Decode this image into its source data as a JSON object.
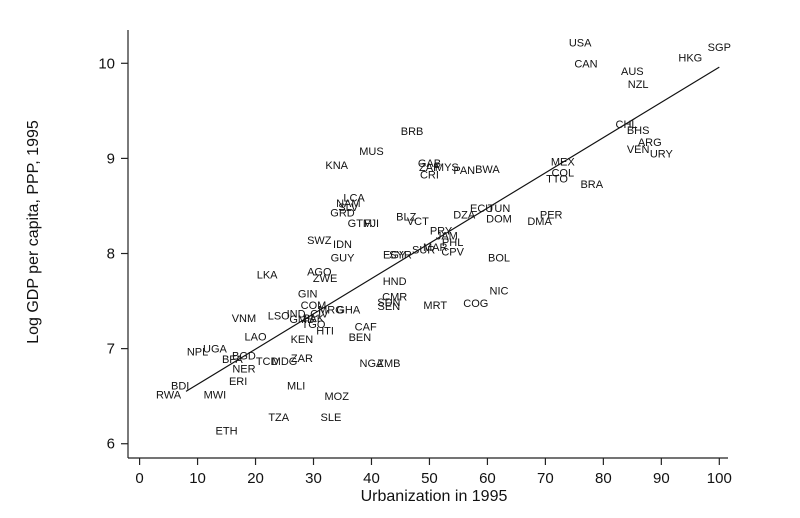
{
  "chart_data": {
    "type": "scatter",
    "xlabel": "Urbanization in 1995",
    "ylabel": "Log GDP per capita, PPP, 1995",
    "xlim": [
      -2,
      101.5
    ],
    "ylim": [
      5.85,
      10.35
    ],
    "xticks": [
      0,
      10,
      20,
      30,
      40,
      50,
      60,
      70,
      80,
      90,
      100
    ],
    "yticks": [
      6,
      7,
      8,
      9,
      10
    ],
    "grid": false,
    "fit_line": {
      "x": [
        8,
        100
      ],
      "y": [
        6.55,
        9.96
      ]
    },
    "points": [
      {
        "label": "USA",
        "x": 76,
        "y": 10.22
      },
      {
        "label": "SGP",
        "x": 100,
        "y": 10.17
      },
      {
        "label": "HKG",
        "x": 95,
        "y": 10.06
      },
      {
        "label": "CAN",
        "x": 77,
        "y": 10.0
      },
      {
        "label": "AUS",
        "x": 85,
        "y": 9.92
      },
      {
        "label": "NZL",
        "x": 86,
        "y": 9.78
      },
      {
        "label": "CHL",
        "x": 84,
        "y": 9.36
      },
      {
        "label": "BHS",
        "x": 86,
        "y": 9.3
      },
      {
        "label": "ARG",
        "x": 88,
        "y": 9.17
      },
      {
        "label": "VEN",
        "x": 86,
        "y": 9.1
      },
      {
        "label": "URY",
        "x": 90,
        "y": 9.05
      },
      {
        "label": "BRB",
        "x": 47,
        "y": 9.29
      },
      {
        "label": "MUS",
        "x": 40,
        "y": 9.08
      },
      {
        "label": "KNA",
        "x": 34,
        "y": 8.93
      },
      {
        "label": "GAB",
        "x": 50,
        "y": 8.95
      },
      {
        "label": "ZAF",
        "x": 50,
        "y": 8.91
      },
      {
        "label": "MYS",
        "x": 53,
        "y": 8.91
      },
      {
        "label": "CRI",
        "x": 50,
        "y": 8.83
      },
      {
        "label": "PAN",
        "x": 56,
        "y": 8.88
      },
      {
        "label": "BWA",
        "x": 60,
        "y": 8.89
      },
      {
        "label": "MEX",
        "x": 73,
        "y": 8.97
      },
      {
        "label": "COL",
        "x": 73,
        "y": 8.85
      },
      {
        "label": "TTO",
        "x": 72,
        "y": 8.79
      },
      {
        "label": "BRA",
        "x": 78,
        "y": 8.73
      },
      {
        "label": "LCA",
        "x": 37,
        "y": 8.59
      },
      {
        "label": "NAM",
        "x": 36,
        "y": 8.53
      },
      {
        "label": "SLV",
        "x": 36,
        "y": 8.49
      },
      {
        "label": "GRD",
        "x": 35,
        "y": 8.43
      },
      {
        "label": "GTM",
        "x": 38,
        "y": 8.32
      },
      {
        "label": "FJI",
        "x": 40,
        "y": 8.32
      },
      {
        "label": "BLZ",
        "x": 46,
        "y": 8.39
      },
      {
        "label": "VCT",
        "x": 48,
        "y": 8.34
      },
      {
        "label": "DZA",
        "x": 56,
        "y": 8.41
      },
      {
        "label": "ECU",
        "x": 59,
        "y": 8.48
      },
      {
        "label": "TUN",
        "x": 62,
        "y": 8.48
      },
      {
        "label": "DOM",
        "x": 62,
        "y": 8.37
      },
      {
        "label": "PER",
        "x": 71,
        "y": 8.41
      },
      {
        "label": "DMA",
        "x": 69,
        "y": 8.34
      },
      {
        "label": "SWZ",
        "x": 31,
        "y": 8.14
      },
      {
        "label": "IDN",
        "x": 35,
        "y": 8.1
      },
      {
        "label": "GUY",
        "x": 35,
        "y": 7.96
      },
      {
        "label": "PRY",
        "x": 52,
        "y": 8.24
      },
      {
        "label": "JAM",
        "x": 53,
        "y": 8.19
      },
      {
        "label": "PHL",
        "x": 54,
        "y": 8.12
      },
      {
        "label": "SUR",
        "x": 49,
        "y": 8.04
      },
      {
        "label": "MAR",
        "x": 51,
        "y": 8.07
      },
      {
        "label": "EGY",
        "x": 44,
        "y": 7.99
      },
      {
        "label": "SYR",
        "x": 45,
        "y": 7.99
      },
      {
        "label": "CPV",
        "x": 54,
        "y": 8.02
      },
      {
        "label": "BOL",
        "x": 62,
        "y": 7.96
      },
      {
        "label": "LKA",
        "x": 22,
        "y": 7.78
      },
      {
        "label": "AGO",
        "x": 31,
        "y": 7.81
      },
      {
        "label": "ZWE",
        "x": 32,
        "y": 7.74
      },
      {
        "label": "HND",
        "x": 44,
        "y": 7.71
      },
      {
        "label": "NIC",
        "x": 62,
        "y": 7.61
      },
      {
        "label": "CMR",
        "x": 44,
        "y": 7.55
      },
      {
        "label": "SEN",
        "x": 43,
        "y": 7.45
      },
      {
        "label": "MRT",
        "x": 51,
        "y": 7.46
      },
      {
        "label": "COG",
        "x": 58,
        "y": 7.48
      },
      {
        "label": "SDN",
        "x": 43,
        "y": 7.49
      },
      {
        "label": "GIN",
        "x": 29,
        "y": 7.58
      },
      {
        "label": "COM",
        "x": 30,
        "y": 7.46
      },
      {
        "label": "MRG",
        "x": 33,
        "y": 7.41
      },
      {
        "label": "GHA",
        "x": 36,
        "y": 7.41
      },
      {
        "label": "IND",
        "x": 27,
        "y": 7.37
      },
      {
        "label": "CIV",
        "x": 31,
        "y": 7.37
      },
      {
        "label": "PAK",
        "x": 30,
        "y": 7.32
      },
      {
        "label": "GMB",
        "x": 28,
        "y": 7.31
      },
      {
        "label": "TGO",
        "x": 30,
        "y": 7.26
      },
      {
        "label": "HTI",
        "x": 32,
        "y": 7.19
      },
      {
        "label": "LSO",
        "x": 24,
        "y": 7.35
      },
      {
        "label": "VNM",
        "x": 18,
        "y": 7.32
      },
      {
        "label": "CAF",
        "x": 39,
        "y": 7.23
      },
      {
        "label": "BEN",
        "x": 38,
        "y": 7.12
      },
      {
        "label": "LAO",
        "x": 20,
        "y": 7.13
      },
      {
        "label": "KEN",
        "x": 28,
        "y": 7.1
      },
      {
        "label": "UGA",
        "x": 13,
        "y": 7.0
      },
      {
        "label": "NPL",
        "x": 10,
        "y": 6.97
      },
      {
        "label": "BGD",
        "x": 18,
        "y": 6.93
      },
      {
        "label": "BFA",
        "x": 16,
        "y": 6.89
      },
      {
        "label": "TCD",
        "x": 22,
        "y": 6.87
      },
      {
        "label": "MDG",
        "x": 25,
        "y": 6.87
      },
      {
        "label": "ZAR",
        "x": 28,
        "y": 6.9
      },
      {
        "label": "NGA",
        "x": 40,
        "y": 6.85
      },
      {
        "label": "ZMB",
        "x": 43,
        "y": 6.85
      },
      {
        "label": "NER",
        "x": 18,
        "y": 6.79
      },
      {
        "label": "ERI",
        "x": 17,
        "y": 6.66
      },
      {
        "label": "MLI",
        "x": 27,
        "y": 6.61
      },
      {
        "label": "BDI",
        "x": 7,
        "y": 6.61
      },
      {
        "label": "RWA",
        "x": 5,
        "y": 6.52
      },
      {
        "label": "MWI",
        "x": 13,
        "y": 6.52
      },
      {
        "label": "MOZ",
        "x": 34,
        "y": 6.5
      },
      {
        "label": "TZA",
        "x": 24,
        "y": 6.28
      },
      {
        "label": "SLE",
        "x": 33,
        "y": 6.28
      },
      {
        "label": "ETH",
        "x": 15,
        "y": 6.14
      }
    ]
  }
}
